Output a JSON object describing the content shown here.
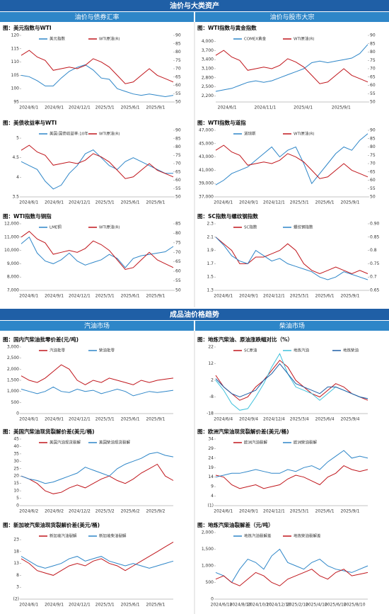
{
  "headers": {
    "top": "油价与大类资产",
    "top_left": "油价与债券汇率",
    "top_right": "油价与股市大宗",
    "bottom": "成品油价格趋势",
    "bottom_left": "汽油市场",
    "bottom_right": "柴油市场"
  },
  "chart_data": [
    {
      "type": "line",
      "title": "图：美元指数与WTI",
      "x_labels": [
        "2024/6/1",
        "2024/9/1",
        "2024/12/1",
        "2025/3/1",
        "2025/6/1",
        "2025/9/1"
      ],
      "ylim": [
        95,
        120
      ],
      "yticks": [
        95,
        100,
        105,
        110,
        115,
        120
      ],
      "y2lim": [
        50,
        90
      ],
      "y2ticks": [
        50,
        55,
        60,
        65,
        70,
        75,
        80,
        85,
        90
      ],
      "series": [
        {
          "name": "美元指数",
          "color": "#2e86c8",
          "values": [
            105,
            104.5,
            103,
            101,
            101,
            104,
            106.5,
            108,
            109,
            107,
            104,
            103.5,
            100,
            99,
            98,
            97.5,
            98,
            97.5,
            97,
            97.5
          ]
        },
        {
          "name": "WTI原油(R)",
          "color": "#c0161c",
          "axis": "y2",
          "values": [
            78,
            81,
            77,
            75,
            69,
            70,
            71,
            70,
            72,
            76,
            74,
            71,
            66,
            61,
            62,
            66,
            70,
            66,
            64,
            62
          ]
        }
      ]
    },
    {
      "type": "line",
      "title": "图：WTI指数与黄金指数",
      "x_labels": [
        "2024/6/1",
        "2024/11/1",
        "2025/4/1",
        "2025/9/1"
      ],
      "ylim": [
        2000,
        4200
      ],
      "yticks": [
        {
          "value": 2200,
          "label": "2,200"
        },
        {
          "value": 2500,
          "label": "2,500"
        },
        {
          "value": 2800,
          "label": "2,800"
        },
        {
          "value": 3100,
          "label": "3,100"
        },
        {
          "value": 3400,
          "label": "3,400"
        },
        {
          "value": 3700,
          "label": "3,700"
        },
        {
          "value": 4000,
          "label": "4,000"
        }
      ],
      "y2lim": [
        50,
        90
      ],
      "y2ticks": [
        50,
        55,
        60,
        65,
        70,
        75,
        80,
        85,
        90
      ],
      "series": [
        {
          "name": "COMEX黄金",
          "color": "#2e86c8",
          "values": [
            2350,
            2400,
            2450,
            2550,
            2650,
            2700,
            2650,
            2700,
            2800,
            2900,
            3000,
            3100,
            3300,
            3350,
            3300,
            3350,
            3400,
            3450,
            3600,
            3900
          ]
        },
        {
          "name": "WTI原油(R)",
          "color": "#c0161c",
          "axis": "y2",
          "values": [
            78,
            81,
            77,
            75,
            69,
            70,
            71,
            70,
            72,
            76,
            74,
            71,
            66,
            61,
            62,
            66,
            70,
            66,
            64,
            62
          ]
        }
      ]
    },
    {
      "type": "line",
      "title": "图：美债收益率与WTI",
      "x_labels": [
        "2024/6/1",
        "2024/9/1",
        "2024/12/1",
        "2025/3/1",
        "2025/6/1",
        "2025/9/1"
      ],
      "ylim": [
        3.5,
        5.2
      ],
      "yticks": [
        3.5,
        4,
        4.5,
        5
      ],
      "y2lim": [
        50,
        90
      ],
      "y2ticks": [
        50,
        55,
        60,
        65,
        70,
        75,
        80,
        85,
        90
      ],
      "series": [
        {
          "name": "美国:国债收益率:10年",
          "color": "#2e86c8",
          "values": [
            4.4,
            4.3,
            4.2,
            3.9,
            3.7,
            3.8,
            4.1,
            4.3,
            4.6,
            4.7,
            4.5,
            4.3,
            4.2,
            4.4,
            4.5,
            4.4,
            4.3,
            4.2,
            4.1,
            4.1
          ]
        },
        {
          "name": "WTI原油(R)",
          "color": "#c0161c",
          "axis": "y2",
          "values": [
            78,
            81,
            77,
            75,
            69,
            70,
            71,
            70,
            72,
            76,
            74,
            71,
            66,
            61,
            62,
            66,
            70,
            66,
            64,
            62
          ]
        }
      ]
    },
    {
      "type": "line",
      "title": "图：WTI指数与道指",
      "x_labels": [
        "2024/6/1",
        "2024/9/1",
        "2024/12/1",
        "2025/3/1",
        "2025/6/1",
        "2025/9/1"
      ],
      "ylim": [
        37000,
        47000
      ],
      "yticks": [
        {
          "value": 37000,
          "label": "37,000"
        },
        {
          "value": 39000,
          "label": "39,000"
        },
        {
          "value": 41000,
          "label": "41,000"
        },
        {
          "value": 43000,
          "label": "43,000"
        },
        {
          "value": 45000,
          "label": "45,000"
        },
        {
          "value": 47000,
          "label": "47,000"
        }
      ],
      "y2lim": [
        50,
        90
      ],
      "y2ticks": [
        50,
        55,
        60,
        65,
        70,
        75,
        80,
        85,
        90
      ],
      "series": [
        {
          "name": "道琼斯",
          "color": "#2e86c8",
          "values": [
            38800,
            39500,
            40500,
            41000,
            41500,
            42500,
            43500,
            44500,
            43000,
            44000,
            44500,
            42000,
            39000,
            40500,
            42000,
            43500,
            44500,
            44000,
            45500,
            46500
          ]
        },
        {
          "name": "WTI原油(R)",
          "color": "#c0161c",
          "axis": "y2",
          "values": [
            78,
            81,
            77,
            75,
            69,
            70,
            71,
            70,
            72,
            76,
            74,
            71,
            66,
            61,
            62,
            66,
            70,
            66,
            64,
            62
          ]
        }
      ]
    },
    {
      "type": "line",
      "title": "图：WTI指数与铜指",
      "x_labels": [
        "2024/6/1",
        "2024/9/1",
        "2024/12/1",
        "2025/3/1",
        "2025/6/1",
        "2025/9/1"
      ],
      "ylim": [
        7000,
        12000
      ],
      "yticks": [
        {
          "value": 7000,
          "label": "7,000"
        },
        {
          "value": 8000,
          "label": "8,000"
        },
        {
          "value": 9000,
          "label": "9,000"
        },
        {
          "value": 10000,
          "label": "10,000"
        },
        {
          "value": 11000,
          "label": "11,000"
        },
        {
          "value": 12000,
          "label": "12,000"
        }
      ],
      "y2lim": [
        50,
        85
      ],
      "y2ticks": [
        50,
        55,
        60,
        65,
        70,
        75,
        80,
        85
      ],
      "series": [
        {
          "name": "LME铜",
          "color": "#2e86c8",
          "values": [
            10500,
            11000,
            9800,
            9200,
            9000,
            9300,
            9800,
            9200,
            8900,
            9100,
            9300,
            9700,
            9400,
            8700,
            9400,
            9600,
            9700,
            9800,
            9900,
            10300
          ]
        },
        {
          "name": "WTI原油(R)",
          "color": "#c0161c",
          "axis": "y2",
          "values": [
            78,
            81,
            77,
            75,
            69,
            70,
            71,
            70,
            72,
            76,
            74,
            71,
            66,
            61,
            62,
            66,
            70,
            66,
            64,
            62
          ]
        }
      ]
    },
    {
      "type": "line",
      "title": "图：SC指数与螺纹钢指数",
      "x_labels": [
        "2024/6/1",
        "2024/9/1",
        "2024/12/1",
        "2025/3/1",
        "2025/6/1",
        "2025/9/1"
      ],
      "ylim": [
        1.3,
        2.3
      ],
      "yticks": [
        1.3,
        1.5,
        1.7,
        1.9,
        2.1,
        2.3
      ],
      "y2lim": [
        0.65,
        0.9
      ],
      "y2ticks": [
        0.65,
        0.7,
        0.75,
        0.8,
        0.85,
        {
          "value": 0.9,
          "label": "0.90"
        }
      ],
      "series": [
        {
          "name": "SC指数",
          "color": "#c0161c",
          "values": [
            2.1,
            2.0,
            1.9,
            1.7,
            1.7,
            1.8,
            1.8,
            1.85,
            1.9,
            2.0,
            1.9,
            1.7,
            1.6,
            1.55,
            1.6,
            1.65,
            1.6,
            1.55,
            1.6,
            1.55
          ]
        },
        {
          "name": "螺纹钢指数",
          "color": "#2e86c8",
          "axis": "y2",
          "values": [
            0.85,
            0.82,
            0.78,
            0.76,
            0.75,
            0.8,
            0.78,
            0.76,
            0.77,
            0.75,
            0.74,
            0.73,
            0.72,
            0.7,
            0.69,
            0.7,
            0.72,
            0.71,
            0.7,
            0.69
          ]
        }
      ]
    },
    {
      "type": "line",
      "title": "图：国内汽柴油批零价差(元/吨)",
      "x_labels": [
        "2024/6/1",
        "2024/9/1",
        "2024/12/1",
        "2025/3/1",
        "2025/6/1",
        "2025/9/1"
      ],
      "ylim": [
        0,
        3000
      ],
      "yticks": [
        0,
        500,
        {
          "value": 1000,
          "label": "1,000"
        },
        {
          "value": 1500,
          "label": "1,500"
        },
        {
          "value": 2000,
          "label": "2,000"
        },
        {
          "value": 2500,
          "label": "2,500"
        },
        {
          "value": 3000,
          "label": "3,000"
        }
      ],
      "series": [
        {
          "name": "汽油批零",
          "color": "#c0161c",
          "values": [
            1700,
            1500,
            1400,
            1600,
            1900,
            2200,
            2000,
            1500,
            1300,
            1500,
            1400,
            1600,
            1500,
            1400,
            1300,
            1500,
            1400,
            1500,
            1550,
            1600
          ]
        },
        {
          "name": "柴油批零",
          "color": "#2e86c8",
          "values": [
            1100,
            1000,
            900,
            1000,
            1200,
            1000,
            950,
            1100,
            1000,
            1050,
            900,
            1000,
            1100,
            1000,
            800,
            900,
            1000,
            950,
            1000,
            1050
          ]
        }
      ]
    },
    {
      "type": "line",
      "title": "图：地炼汽柴油、原油涨跌幅对比（%）",
      "x_labels": [
        "2024/6/4",
        "2024/9/4",
        "2024/12/4",
        "2025/3/4",
        "2025/6/4",
        "2025/9/4"
      ],
      "ylim": [
        -18,
        22
      ],
      "yticks": [
        -18,
        -8,
        2,
        12,
        22
      ],
      "series": [
        {
          "name": "SC原油",
          "color": "#c0161c",
          "values": [
            5,
            -2,
            -6,
            -10,
            -8,
            -2,
            2,
            8,
            14,
            10,
            2,
            -2,
            -6,
            -8,
            -4,
            0,
            -2,
            -6,
            -8,
            -10
          ]
        },
        {
          "name": "地炼汽油",
          "color": "#3fc1dc",
          "values": [
            2,
            -4,
            -12,
            -16,
            -15,
            -8,
            0,
            10,
            18,
            6,
            -2,
            -4,
            -6,
            -10,
            -6,
            -2,
            -4,
            -6,
            -8,
            -9
          ]
        },
        {
          "name": "地炼柴油",
          "color": "#1f5fa6",
          "values": [
            3,
            -2,
            -6,
            -8,
            -6,
            -4,
            2,
            6,
            12,
            6,
            0,
            -2,
            -4,
            -6,
            -2,
            -2,
            -4,
            -6,
            -8,
            -9
          ]
        }
      ]
    },
    {
      "type": "line",
      "title": "图：美国汽柴油现货裂解价差(美元/桶)",
      "x_labels": [
        "2024/6/2",
        "2024/9/2",
        "2024/12/2",
        "2025/3/2",
        "2025/6/2",
        "2025/9/2"
      ],
      "ylim": [
        0,
        45
      ],
      "yticks": [
        0,
        5,
        10,
        15,
        20,
        25,
        30,
        35,
        40,
        45
      ],
      "series": [
        {
          "name": "美国汽油现货裂解",
          "color": "#c0161c",
          "values": [
            20,
            18,
            15,
            10,
            8,
            9,
            12,
            14,
            12,
            15,
            18,
            20,
            17,
            15,
            18,
            22,
            25,
            28,
            20,
            17
          ]
        },
        {
          "name": "美国柴油现货裂解",
          "color": "#2e86c8",
          "values": [
            20,
            18,
            17,
            15,
            16,
            18,
            20,
            22,
            26,
            24,
            22,
            20,
            25,
            28,
            30,
            32,
            35,
            36,
            34,
            33
          ]
        }
      ]
    },
    {
      "type": "line",
      "title": "图：欧洲汽柴油现货裂解价差(美元/桶)",
      "x_labels": [
        "2024/6/1",
        "2024/9/1",
        "2024/12/1",
        "2025/3/1",
        "2025/6/1",
        "2025/9/1"
      ],
      "ylim": [
        -1,
        34
      ],
      "yticks": [
        {
          "value": -1,
          "label": "(1)"
        },
        4,
        9,
        14,
        19,
        24,
        29,
        34
      ],
      "series": [
        {
          "name": "欧洲汽油裂解",
          "color": "#c0161c",
          "values": [
            15,
            14,
            10,
            8,
            9,
            10,
            8,
            9,
            10,
            13,
            15,
            14,
            12,
            10,
            14,
            16,
            20,
            18,
            17,
            18
          ]
        },
        {
          "name": "欧洲柴油裂解",
          "color": "#2e86c8",
          "values": [
            14,
            15,
            16,
            16,
            17,
            18,
            17,
            16,
            16,
            18,
            17,
            19,
            20,
            18,
            22,
            25,
            28,
            24,
            25,
            24
          ]
        }
      ]
    },
    {
      "type": "line",
      "title": "图：新加坡汽柴油现货裂解价差(美元/桶)",
      "x_labels": [
        "2024/6/1",
        "2024/9/1",
        "2024/12/1",
        "2025/3/1",
        "2025/6/1",
        "2025/9/1"
      ],
      "ylim": [
        -2,
        26
      ],
      "yticks": [
        {
          "value": -2,
          "label": "(2)"
        },
        3,
        8,
        13,
        18,
        23
      ],
      "series": [
        {
          "name": "新加坡汽油裂解",
          "color": "#c0161c",
          "values": [
            15,
            13,
            10,
            9,
            8,
            10,
            12,
            13,
            12,
            14,
            15,
            13,
            12,
            10,
            12,
            14,
            16,
            18,
            20,
            22
          ]
        },
        {
          "name": "新加坡柴油裂解",
          "color": "#2e86c8",
          "values": [
            16,
            14,
            12,
            11,
            12,
            13,
            15,
            16,
            14,
            15,
            16,
            14,
            13,
            12,
            13,
            12,
            11,
            12,
            13,
            14
          ]
        }
      ]
    },
    {
      "type": "line",
      "title": "图：地炼汽柴油裂解差（元/吨）",
      "x_labels": [
        "2024/6/10",
        "2024/8/10",
        "2024/10/10",
        "2024/12/10",
        "2025/2/10",
        "2025/4/10",
        "2025/6/10",
        "2025/8/10"
      ],
      "ylim": [
        0,
        2000
      ],
      "yticks": [
        0,
        500,
        {
          "value": 1000,
          "label": "1,000"
        },
        {
          "value": 1500,
          "label": "1,500"
        },
        {
          "value": 2000,
          "label": "2,000"
        }
      ],
      "series": [
        {
          "name": "地炼汽油裂解差",
          "color": "#2e86c8",
          "values": [
            800,
            700,
            500,
            900,
            1200,
            1100,
            900,
            1300,
            1500,
            1100,
            1000,
            900,
            1100,
            1200,
            1000,
            900,
            850,
            800,
            900,
            1000
          ]
        },
        {
          "name": "地炼柴油裂解差",
          "color": "#c0161c",
          "values": [
            600,
            700,
            500,
            400,
            600,
            800,
            700,
            500,
            400,
            600,
            700,
            800,
            900,
            700,
            600,
            800,
            900,
            700,
            750,
            800
          ]
        }
      ]
    }
  ]
}
